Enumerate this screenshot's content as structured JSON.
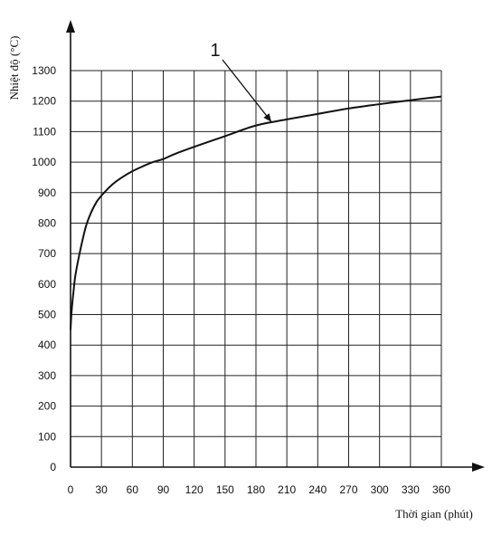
{
  "chart_data": {
    "type": "line",
    "xlabel": "Thời gian (phút)",
    "ylabel": "Nhiệt độ (°C)",
    "xlim": [
      0,
      360
    ],
    "ylim": [
      0,
      1300
    ],
    "x_ticks": [
      "0",
      "30",
      "60",
      "90",
      "120",
      "150",
      "180",
      "210",
      "240",
      "270",
      "300",
      "330",
      "360"
    ],
    "y_ticks": [
      "0",
      "100",
      "200",
      "300",
      "400",
      "500",
      "600",
      "700",
      "800",
      "900",
      "1000",
      "1100",
      "1200",
      "1300"
    ],
    "grid": true,
    "series": [
      {
        "name": "1",
        "x": [
          0,
          1,
          3,
          5,
          10,
          15,
          20,
          25,
          30,
          40,
          50,
          60,
          70,
          80,
          90,
          100,
          120,
          150,
          180,
          210,
          240,
          270,
          300,
          330,
          360
        ],
        "y": [
          450,
          510,
          580,
          635,
          720,
          790,
          835,
          868,
          890,
          925,
          950,
          970,
          986,
          1000,
          1010,
          1025,
          1050,
          1085,
          1120,
          1140,
          1158,
          1176,
          1190,
          1203,
          1215
        ]
      }
    ],
    "annotations": [
      {
        "text": "1",
        "x": 195,
        "y": 1120
      }
    ]
  }
}
